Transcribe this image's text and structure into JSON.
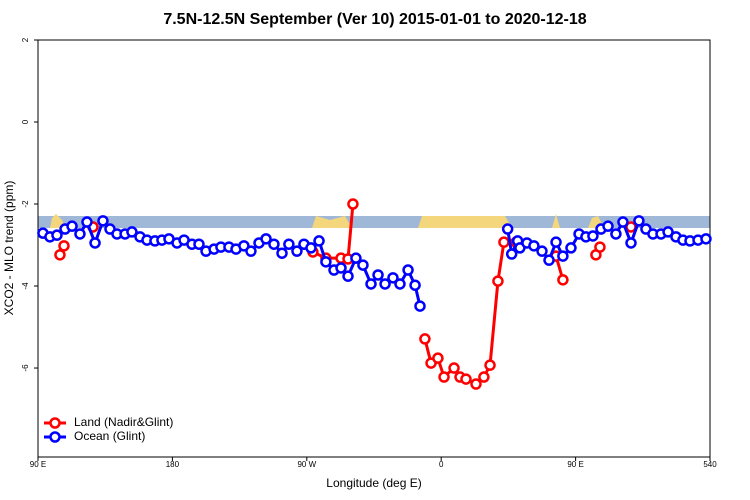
{
  "chart_data": {
    "type": "line",
    "title": "7.5N-12.5N September (Ver 10)   2015-01-01 to 2020-12-18",
    "x_label": "Longitude (deg E)",
    "y_label": "XCO2 - MLO trend (ppm)",
    "xlim": [
      90,
      540
    ],
    "xticks": [
      {
        "value": 90,
        "label": "90 E"
      },
      180,
      {
        "value": 270,
        "label": "90 W"
      },
      {
        "value": 360,
        "label": "0"
      },
      {
        "value": 450,
        "label": "90 E"
      },
      540
    ],
    "ylim": [
      -8.17,
      2
    ],
    "yticks": [
      2,
      0,
      -2,
      -4,
      -6
    ],
    "legend": "bottom-left",
    "series": [
      {
        "name": "Land (Nadir&Glint)",
        "color": "#ff0000",
        "x": [
          104.7,
          107.4,
          null,
          126.8,
          null,
          274.1,
          282.8,
          292.9,
          297.6,
          300.9,
          null,
          349.1,
          353.2,
          357.8,
          361.9,
          368.6,
          372.6,
          376.6,
          383.3,
          388.6,
          392.7,
          398.0,
          402.0,
          410.1,
          null,
          436.9,
          441.5,
          null,
          463.6,
          466.3,
          null,
          487.1
        ],
        "values": [
          -3.24,
          -3.02,
          null,
          -2.56,
          null,
          -3.17,
          -3.32,
          -3.32,
          -3.34,
          -2.0,
          null,
          -5.29,
          -5.88,
          -5.76,
          -6.22,
          -6.0,
          -6.22,
          -6.27,
          -6.39,
          -6.22,
          -5.93,
          -3.88,
          -2.93,
          -2.93,
          null,
          -3.27,
          -3.85,
          null,
          -3.24,
          -3.05,
          null,
          -2.56
        ]
      },
      {
        "name": "Ocean (Glint)",
        "color": "#0000ff",
        "x": [
          93.3,
          98.0,
          102.7,
          108.1,
          112.8,
          118.1,
          122.8,
          128.2,
          133.5,
          138.2,
          142.9,
          148.3,
          152.9,
          158.3,
          163.0,
          168.3,
          173.0,
          177.7,
          183.1,
          187.8,
          193.1,
          197.8,
          202.5,
          207.9,
          212.5,
          217.9,
          222.6,
          227.9,
          232.6,
          238.0,
          242.7,
          248.0,
          253.4,
          258.0,
          263.4,
          268.1,
          272.8,
          278.2,
          282.8,
          288.2,
          292.9,
          297.6,
          302.9,
          307.6,
          313.0,
          317.7,
          322.4,
          327.7,
          332.4,
          337.8,
          342.5,
          345.8,
          null,
          404.5,
          407.2,
          411.2,
          412.7,
          417.4,
          422.1,
          427.5,
          432.2,
          436.9,
          441.5,
          446.9,
          452.3,
          456.9,
          461.6,
          467.0,
          471.7,
          477.0,
          481.7,
          487.1,
          492.4,
          497.1,
          501.8,
          507.2,
          511.9,
          517.2,
          521.9,
          526.6,
          532.0,
          537.3
        ],
        "values": [
          -2.71,
          -2.8,
          -2.76,
          -2.61,
          -2.54,
          -2.73,
          -2.44,
          -2.95,
          -2.41,
          -2.61,
          -2.73,
          -2.73,
          -2.68,
          -2.8,
          -2.88,
          -2.9,
          -2.88,
          -2.85,
          -2.95,
          -2.88,
          -2.98,
          -2.98,
          -3.15,
          -3.1,
          -3.05,
          -3.05,
          -3.1,
          -3.02,
          -3.15,
          -2.95,
          -2.85,
          -2.98,
          -3.2,
          -2.98,
          -3.15,
          -2.98,
          -3.07,
          -2.9,
          -3.41,
          -3.61,
          -3.56,
          -3.76,
          -3.32,
          -3.49,
          -3.95,
          -3.73,
          -3.95,
          -3.8,
          -3.95,
          -3.61,
          -3.98,
          -4.49,
          null,
          -2.61,
          -3.22,
          -2.9,
          -3.07,
          -2.95,
          -3.02,
          -3.15,
          -3.37,
          -2.93,
          -3.27,
          -3.07,
          -2.73,
          -2.8,
          -2.78,
          -2.61,
          -2.54,
          -2.73,
          -2.44,
          -2.95,
          -2.41,
          -2.61,
          -2.73,
          -2.73,
          -2.68,
          -2.8,
          -2.88,
          -2.9,
          -2.88,
          -2.85
        ]
      }
    ]
  }
}
